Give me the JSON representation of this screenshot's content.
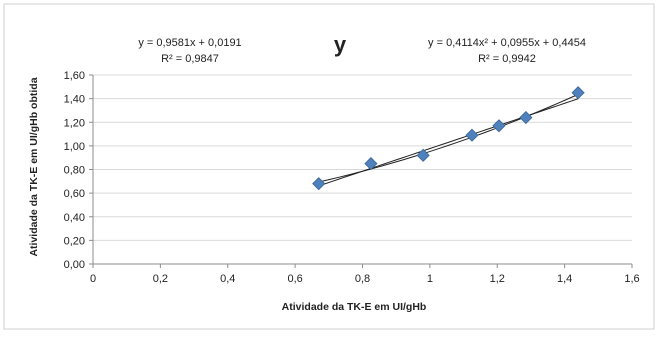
{
  "chart_data": {
    "type": "scatter",
    "title": "y",
    "xlabel": "Atividade da TK-E  em UI/gHb",
    "ylabel": "Atividade da TK-E  em UI/gHb obtida",
    "xlim": [
      0,
      1.6
    ],
    "ylim": [
      0,
      1.6
    ],
    "x_ticks": [
      0,
      0.2,
      0.4,
      0.6,
      0.8,
      1,
      1.2,
      1.4,
      1.6
    ],
    "x_tick_labels": [
      "0",
      "0,2",
      "0,4",
      "0,6",
      "0,8",
      "1",
      "1,2",
      "1,4",
      "1,6"
    ],
    "y_ticks": [
      0,
      0.2,
      0.4,
      0.6,
      0.8,
      1.0,
      1.2,
      1.4,
      1.6
    ],
    "y_tick_labels": [
      "0,00",
      "0,20",
      "0,40",
      "0,60",
      "0,80",
      "1,00",
      "1,20",
      "1,40",
      "1,60"
    ],
    "grid": "horizontal",
    "legend": "none",
    "marker_color": "#4f81bd",
    "trend_color": "#222222",
    "series": [
      {
        "x": [
          0.67,
          0.825,
          0.98,
          1.125,
          1.205,
          1.285,
          1.44
        ],
        "y": [
          0.68,
          0.85,
          0.92,
          1.09,
          1.17,
          1.24,
          1.45
        ]
      }
    ],
    "trendlines": [
      {
        "type": "linear",
        "coefficients": [
          0.9581,
          0.0191
        ],
        "equation": "y = 0,9581x + 0,0191",
        "r2": "R² = 0,9847",
        "x_range": [
          0.67,
          1.44
        ]
      },
      {
        "type": "polynomial",
        "coefficients": [
          0.4114,
          0.0955,
          0.4454
        ],
        "equation": "y = 0,4114x² + 0,0955x + 0,4454",
        "r2": "R² = 0,9942",
        "x_range": [
          0.67,
          1.44
        ]
      }
    ]
  }
}
